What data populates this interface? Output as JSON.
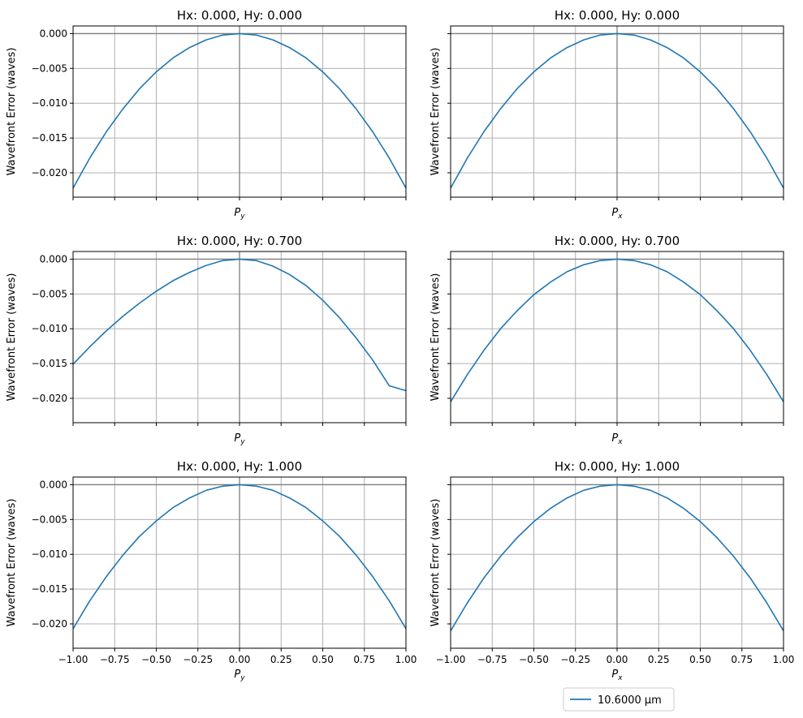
{
  "chart_data": [
    {
      "type": "line",
      "title": "Hx: 0.000, Hy: 0.000",
      "xlabel": "P_y",
      "ylabel": "Wavefront Error (waves)",
      "xlim": [
        -1.0,
        1.0
      ],
      "ylim": [
        -0.0235,
        0.0011
      ],
      "grid": true,
      "x_ticks": [
        -1.0,
        -0.75,
        -0.5,
        -0.25,
        0.0,
        0.25,
        0.5,
        0.75,
        1.0
      ],
      "y_ticks": [
        0.0,
        -0.005,
        -0.01,
        -0.015,
        -0.02
      ],
      "y_tick_labels": [
        "0.000",
        "−0.005",
        "−0.010",
        "−0.015",
        "−0.020"
      ],
      "show_x_tick_labels": false,
      "show_y_tick_labels": true,
      "series": [
        {
          "color": "#1f77b4",
          "x": [
            -1.0,
            -0.9,
            -0.8,
            -0.7,
            -0.6,
            -0.5,
            -0.4,
            -0.3,
            -0.2,
            -0.1,
            0.0,
            0.1,
            0.2,
            0.3,
            0.4,
            0.5,
            0.6,
            0.7,
            0.8,
            0.9,
            1.0
          ],
          "y": [
            -0.0222,
            -0.0179,
            -0.0141,
            -0.0108,
            -0.0079,
            -0.0055,
            -0.0035,
            -0.002,
            -0.0009,
            -0.0002,
            0.0,
            -0.0002,
            -0.0009,
            -0.002,
            -0.0035,
            -0.0055,
            -0.0079,
            -0.0108,
            -0.0141,
            -0.0179,
            -0.0222
          ]
        }
      ]
    },
    {
      "type": "line",
      "title": "Hx: 0.000, Hy: 0.000",
      "xlabel": "P_x",
      "ylabel": "Wavefront Error (waves)",
      "xlim": [
        -1.0,
        1.0
      ],
      "ylim": [
        -0.0235,
        0.0011
      ],
      "grid": true,
      "x_ticks": [
        -1.0,
        -0.75,
        -0.5,
        -0.25,
        0.0,
        0.25,
        0.5,
        0.75,
        1.0
      ],
      "y_ticks": [
        0.0,
        -0.005,
        -0.01,
        -0.015,
        -0.02
      ],
      "show_x_tick_labels": false,
      "show_y_tick_labels": false,
      "series": [
        {
          "color": "#1f77b4",
          "x": [
            -1.0,
            -0.9,
            -0.8,
            -0.7,
            -0.6,
            -0.5,
            -0.4,
            -0.3,
            -0.2,
            -0.1,
            0.0,
            0.1,
            0.2,
            0.3,
            0.4,
            0.5,
            0.6,
            0.7,
            0.8,
            0.9,
            1.0
          ],
          "y": [
            -0.0222,
            -0.0179,
            -0.0141,
            -0.0108,
            -0.0079,
            -0.0055,
            -0.0035,
            -0.002,
            -0.0009,
            -0.0002,
            0.0,
            -0.0002,
            -0.0009,
            -0.002,
            -0.0035,
            -0.0055,
            -0.0079,
            -0.0108,
            -0.0141,
            -0.0179,
            -0.0222
          ]
        }
      ]
    },
    {
      "type": "line",
      "title": "Hx: 0.000, Hy: 0.700",
      "xlabel": "P_y",
      "ylabel": "Wavefront Error (waves)",
      "xlim": [
        -1.0,
        1.0
      ],
      "ylim": [
        -0.0235,
        0.0011
      ],
      "grid": true,
      "x_ticks": [
        -1.0,
        -0.75,
        -0.5,
        -0.25,
        0.0,
        0.25,
        0.5,
        0.75,
        1.0
      ],
      "y_ticks": [
        0.0,
        -0.005,
        -0.01,
        -0.015,
        -0.02
      ],
      "y_tick_labels": [
        "0.000",
        "−0.005",
        "−0.010",
        "−0.015",
        "−0.020"
      ],
      "show_x_tick_labels": false,
      "show_y_tick_labels": true,
      "series": [
        {
          "color": "#1f77b4",
          "x": [
            -1.0,
            -0.9,
            -0.8,
            -0.7,
            -0.6,
            -0.5,
            -0.4,
            -0.3,
            -0.2,
            -0.1,
            0.0,
            0.1,
            0.2,
            0.3,
            0.4,
            0.5,
            0.6,
            0.7,
            0.8,
            0.9,
            1.0
          ],
          "y": [
            -0.0151,
            -0.0126,
            -0.0103,
            -0.0082,
            -0.0063,
            -0.0046,
            -0.0031,
            -0.0019,
            -0.0009,
            -0.0002,
            0.0,
            -0.0002,
            -0.001,
            -0.0022,
            -0.0038,
            -0.0059,
            -0.0084,
            -0.0113,
            -0.0145,
            -0.0182,
            -0.0189
          ]
        }
      ]
    },
    {
      "type": "line",
      "title": "Hx: 0.000, Hy: 0.700",
      "xlabel": "P_x",
      "ylabel": "Wavefront Error (waves)",
      "xlim": [
        -1.0,
        1.0
      ],
      "ylim": [
        -0.0235,
        0.0011
      ],
      "grid": true,
      "x_ticks": [
        -1.0,
        -0.75,
        -0.5,
        -0.25,
        0.0,
        0.25,
        0.5,
        0.75,
        1.0
      ],
      "y_ticks": [
        0.0,
        -0.005,
        -0.01,
        -0.015,
        -0.02
      ],
      "show_x_tick_labels": false,
      "show_y_tick_labels": false,
      "series": [
        {
          "color": "#1f77b4",
          "x": [
            -1.0,
            -0.9,
            -0.8,
            -0.7,
            -0.6,
            -0.5,
            -0.4,
            -0.3,
            -0.2,
            -0.1,
            0.0,
            0.1,
            0.2,
            0.3,
            0.4,
            0.5,
            0.6,
            0.7,
            0.8,
            0.9,
            1.0
          ],
          "y": [
            -0.0205,
            -0.0166,
            -0.0131,
            -0.01,
            -0.0074,
            -0.0051,
            -0.0033,
            -0.0018,
            -0.0008,
            -0.0002,
            0.0,
            -0.0002,
            -0.0008,
            -0.0018,
            -0.0033,
            -0.0051,
            -0.0074,
            -0.01,
            -0.0131,
            -0.0166,
            -0.0205
          ]
        }
      ]
    },
    {
      "type": "line",
      "title": "Hx: 0.000, Hy: 1.000",
      "xlabel": "P_y",
      "ylabel": "Wavefront Error (waves)",
      "xlim": [
        -1.0,
        1.0
      ],
      "ylim": [
        -0.0235,
        0.0011
      ],
      "grid": true,
      "x_ticks": [
        -1.0,
        -0.75,
        -0.5,
        -0.25,
        0.0,
        0.25,
        0.5,
        0.75,
        1.0
      ],
      "x_tick_labels": [
        "−1.00",
        "−0.75",
        "−0.50",
        "−0.25",
        "0.00",
        "0.25",
        "0.50",
        "0.75",
        "1.00"
      ],
      "y_ticks": [
        0.0,
        -0.005,
        -0.01,
        -0.015,
        -0.02
      ],
      "y_tick_labels": [
        "0.000",
        "−0.005",
        "−0.010",
        "−0.015",
        "−0.020"
      ],
      "show_x_tick_labels": true,
      "show_y_tick_labels": true,
      "series": [
        {
          "color": "#1f77b4",
          "x": [
            -1.0,
            -0.9,
            -0.8,
            -0.7,
            -0.6,
            -0.5,
            -0.4,
            -0.3,
            -0.2,
            -0.1,
            0.0,
            0.1,
            0.2,
            0.3,
            0.4,
            0.5,
            0.6,
            0.7,
            0.8,
            0.9,
            1.0
          ],
          "y": [
            -0.0207,
            -0.0167,
            -0.0132,
            -0.0101,
            -0.0074,
            -0.0052,
            -0.0033,
            -0.0019,
            -0.0008,
            -0.0002,
            0.0,
            -0.0002,
            -0.0008,
            -0.0019,
            -0.0033,
            -0.0052,
            -0.0074,
            -0.0101,
            -0.0132,
            -0.0167,
            -0.0207
          ]
        }
      ]
    },
    {
      "type": "line",
      "title": "Hx: 0.000, Hy: 1.000",
      "xlabel": "P_x",
      "ylabel": "Wavefront Error (waves)",
      "xlim": [
        -1.0,
        1.0
      ],
      "ylim": [
        -0.0235,
        0.0011
      ],
      "grid": true,
      "x_ticks": [
        -1.0,
        -0.75,
        -0.5,
        -0.25,
        0.0,
        0.25,
        0.5,
        0.75,
        1.0
      ],
      "x_tick_labels": [
        "−1.00",
        "−0.75",
        "−0.50",
        "−0.25",
        "0.00",
        "0.25",
        "0.50",
        "0.75",
        "1.00"
      ],
      "y_ticks": [
        0.0,
        -0.005,
        -0.01,
        -0.015,
        -0.02
      ],
      "show_x_tick_labels": true,
      "show_y_tick_labels": false,
      "series": [
        {
          "color": "#1f77b4",
          "x": [
            -1.0,
            -0.9,
            -0.8,
            -0.7,
            -0.6,
            -0.5,
            -0.4,
            -0.3,
            -0.2,
            -0.1,
            0.0,
            0.1,
            0.2,
            0.3,
            0.4,
            0.5,
            0.6,
            0.7,
            0.8,
            0.9,
            1.0
          ],
          "y": [
            -0.021,
            -0.017,
            -0.0134,
            -0.0103,
            -0.0076,
            -0.0053,
            -0.0034,
            -0.0019,
            -0.0008,
            -0.0002,
            0.0,
            -0.0002,
            -0.0008,
            -0.0019,
            -0.0034,
            -0.0053,
            -0.0076,
            -0.0103,
            -0.0134,
            -0.017,
            -0.021
          ]
        }
      ]
    }
  ],
  "legend": {
    "placement": "bottom-right",
    "entries": [
      {
        "label": "10.6000 µm",
        "color": "#1f77b4"
      }
    ]
  },
  "style": {
    "line_color": "#1f77b4",
    "grid_color": "#b0b0b0",
    "reference_line_color": "#808080"
  }
}
